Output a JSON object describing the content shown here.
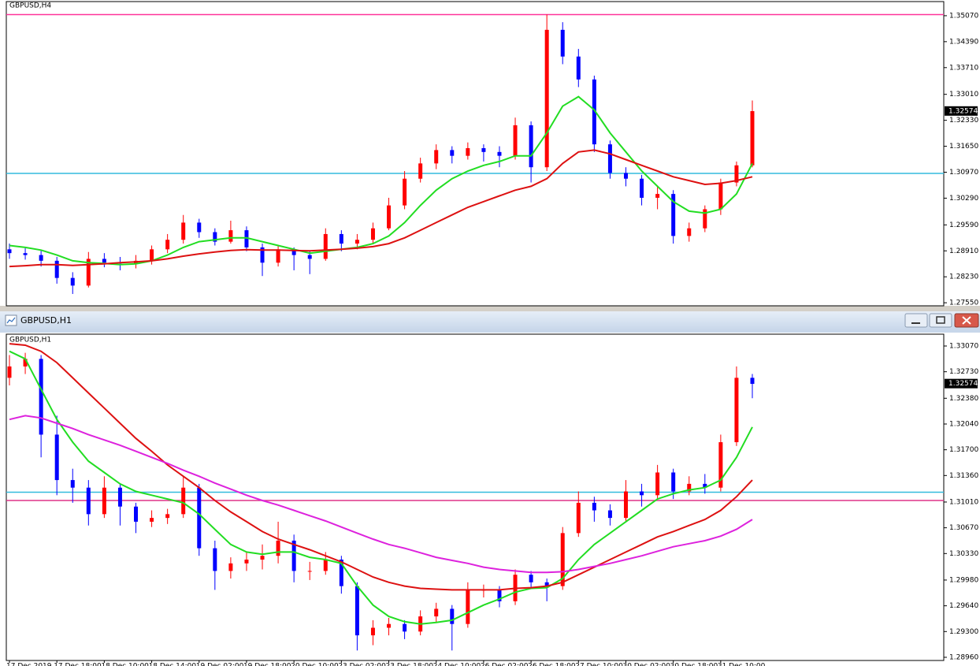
{
  "window": {
    "title": "GBPUSD,H1"
  },
  "chart_data": [
    {
      "type": "candlestick",
      "title": "GBPUSD,H4",
      "ylim": [
        1.2747,
        1.3544
      ],
      "yticks": [
        {
          "value": 1.3507,
          "label": "1.35070"
        },
        {
          "value": 1.3439,
          "label": "1.34390"
        },
        {
          "value": 1.3371,
          "label": "1.33710"
        },
        {
          "value": 1.3301,
          "label": "1.33010"
        },
        {
          "value": 1.3233,
          "label": "1.32330"
        },
        {
          "value": 1.3165,
          "label": "1.31650"
        },
        {
          "value": 1.3097,
          "label": "1.30970"
        },
        {
          "value": 1.3029,
          "label": "1.30290"
        },
        {
          "value": 1.2959,
          "label": "1.29590"
        },
        {
          "value": 1.2891,
          "label": "1.28910"
        },
        {
          "value": 1.2823,
          "label": "1.28230"
        },
        {
          "value": 1.2755,
          "label": "1.27550"
        }
      ],
      "current_price": 1.32574,
      "up_color": "#ff0000",
      "down_color": "#0000ff",
      "hlines": [
        {
          "value": 1.351,
          "color": "#ff3399"
        },
        {
          "value": 1.3094,
          "color": "#33bbdd"
        }
      ],
      "candles": [
        [
          1.2895,
          1.291,
          1.287,
          1.2885
        ],
        [
          1.2885,
          1.2898,
          1.2868,
          1.288
        ],
        [
          1.288,
          1.2892,
          1.285,
          1.2865
        ],
        [
          1.2865,
          1.2875,
          1.2805,
          1.282
        ],
        [
          1.282,
          1.2835,
          1.2778,
          1.28
        ],
        [
          1.28,
          1.2888,
          1.2795,
          1.287
        ],
        [
          1.287,
          1.2885,
          1.2848,
          1.286
        ],
        [
          1.286,
          1.2875,
          1.284,
          1.2858
        ],
        [
          1.2858,
          1.288,
          1.2845,
          1.2865
        ],
        [
          1.2865,
          1.2905,
          1.2855,
          1.2895
        ],
        [
          1.2895,
          1.2935,
          1.2885,
          1.292
        ],
        [
          1.292,
          1.2985,
          1.291,
          1.2965
        ],
        [
          1.2965,
          1.2975,
          1.2925,
          1.294
        ],
        [
          1.294,
          1.295,
          1.2905,
          1.2915
        ],
        [
          1.2915,
          1.297,
          1.291,
          1.2945
        ],
        [
          1.2945,
          1.2955,
          1.289,
          1.29
        ],
        [
          1.29,
          1.291,
          1.2825,
          1.286
        ],
        [
          1.286,
          1.2905,
          1.285,
          1.2895
        ],
        [
          1.2895,
          1.29,
          1.284,
          1.288
        ],
        [
          1.288,
          1.289,
          1.283,
          1.287
        ],
        [
          1.287,
          1.295,
          1.2865,
          1.2935
        ],
        [
          1.2935,
          1.2945,
          1.289,
          1.291
        ],
        [
          1.291,
          1.2935,
          1.2895,
          1.292
        ],
        [
          1.292,
          1.2965,
          1.291,
          1.295
        ],
        [
          1.295,
          1.303,
          1.2945,
          1.301
        ],
        [
          1.301,
          1.31,
          1.3,
          1.308
        ],
        [
          1.308,
          1.3135,
          1.307,
          1.312
        ],
        [
          1.312,
          1.317,
          1.3105,
          1.3155
        ],
        [
          1.3155,
          1.3165,
          1.312,
          1.314
        ],
        [
          1.314,
          1.3175,
          1.313,
          1.316
        ],
        [
          1.316,
          1.317,
          1.3125,
          1.315
        ],
        [
          1.315,
          1.3165,
          1.311,
          1.314
        ],
        [
          1.314,
          1.324,
          1.313,
          1.322
        ],
        [
          1.322,
          1.323,
          1.307,
          1.311
        ],
        [
          1.311,
          1.351,
          1.31,
          1.347
        ],
        [
          1.347,
          1.349,
          1.338,
          1.34
        ],
        [
          1.34,
          1.342,
          1.332,
          1.334
        ],
        [
          1.334,
          1.335,
          1.315,
          1.317
        ],
        [
          1.317,
          1.318,
          1.308,
          1.3095
        ],
        [
          1.3095,
          1.311,
          1.306,
          1.308
        ],
        [
          1.308,
          1.309,
          1.301,
          1.303
        ],
        [
          1.303,
          1.306,
          1.3,
          1.304
        ],
        [
          1.304,
          1.305,
          1.291,
          1.293
        ],
        [
          1.293,
          1.2965,
          1.2915,
          1.295
        ],
        [
          1.295,
          1.301,
          1.294,
          1.3
        ],
        [
          1.3,
          1.308,
          1.2985,
          1.307
        ],
        [
          1.307,
          1.3125,
          1.306,
          1.3115
        ],
        [
          1.3115,
          1.3285,
          1.311,
          1.3257
        ]
      ],
      "series": [
        {
          "color": "#22dd22",
          "values": [
            1.2905,
            1.29,
            1.2893,
            1.288,
            1.2865,
            1.286,
            1.2858,
            1.2855,
            1.2857,
            1.2865,
            1.288,
            1.29,
            1.2915,
            1.292,
            1.2925,
            1.2925,
            1.2915,
            1.2905,
            1.2895,
            1.2885,
            1.289,
            1.2895,
            1.29,
            1.291,
            1.293,
            1.2965,
            1.301,
            1.305,
            1.308,
            1.31,
            1.3115,
            1.3125,
            1.314,
            1.314,
            1.32,
            1.327,
            1.3295,
            1.326,
            1.32,
            1.315,
            1.31,
            1.306,
            1.302,
            1.2995,
            1.299,
            1.3,
            1.304,
            1.312
          ]
        },
        {
          "color": "#dd1111",
          "values": [
            1.285,
            1.2852,
            1.2855,
            1.2855,
            1.2853,
            1.2855,
            1.2857,
            1.286,
            1.2862,
            1.2865,
            1.287,
            1.2877,
            1.2883,
            1.2888,
            1.2892,
            1.2894,
            1.2893,
            1.2893,
            1.2892,
            1.2891,
            1.2893,
            1.2895,
            1.2898,
            1.2902,
            1.291,
            1.2925,
            1.2945,
            1.2965,
            1.2985,
            1.3005,
            1.302,
            1.3035,
            1.305,
            1.306,
            1.308,
            1.312,
            1.315,
            1.3155,
            1.3145,
            1.313,
            1.3115,
            1.31,
            1.3085,
            1.3075,
            1.3065,
            1.3068,
            1.3075,
            1.3085
          ]
        }
      ]
    },
    {
      "type": "candlestick",
      "title": "GBPUSD,H1",
      "ylim": [
        1.28918,
        1.33226
      ],
      "yticks": [
        {
          "value": 1.3307,
          "label": "1.33070"
        },
        {
          "value": 1.3273,
          "label": "1.32730"
        },
        {
          "value": 1.3238,
          "label": "1.32380"
        },
        {
          "value": 1.3204,
          "label": "1.32040"
        },
        {
          "value": 1.317,
          "label": "1.31700"
        },
        {
          "value": 1.3136,
          "label": "1.31360"
        },
        {
          "value": 1.3101,
          "label": "1.31010"
        },
        {
          "value": 1.3067,
          "label": "1.30670"
        },
        {
          "value": 1.3033,
          "label": "1.30330"
        },
        {
          "value": 1.2998,
          "label": "1.29980"
        },
        {
          "value": 1.2964,
          "label": "1.29640"
        },
        {
          "value": 1.293,
          "label": "1.29300"
        },
        {
          "value": 1.2896,
          "label": "1.28960"
        }
      ],
      "current_price": 1.32574,
      "up_color": "#ff0000",
      "down_color": "#0000ff",
      "hlines": [
        {
          "value": 1.3114,
          "color": "#33bbdd"
        },
        {
          "value": 1.3103,
          "color": "#dd3388"
        }
      ],
      "categories": [
        "17 Dec 2019",
        null,
        null,
        "17 Dec 18:00",
        null,
        null,
        "18 Dec 10:00",
        null,
        null,
        "18 Dec 14:00",
        null,
        null,
        "19 Dec 02:00",
        null,
        null,
        "19 Dec 18:00",
        null,
        null,
        "20 Dec 10:00",
        null,
        null,
        "23 Dec 02:00",
        null,
        null,
        "23 Dec 18:00",
        null,
        null,
        "24 Dec 10:00",
        null,
        null,
        "26 Dec 02:00",
        null,
        null,
        "26 Dec 18:00",
        null,
        null,
        "27 Dec 10:00",
        null,
        null,
        "30 Dec 02:00",
        null,
        null,
        "30 Dec 18:00",
        null,
        null,
        "31 Dec 10:00",
        null,
        null
      ],
      "candles": [
        [
          1.3265,
          1.3295,
          1.3255,
          1.328
        ],
        [
          1.328,
          1.3298,
          1.327,
          1.329
        ],
        [
          1.329,
          1.3295,
          1.316,
          1.319
        ],
        [
          1.319,
          1.3215,
          1.311,
          1.313
        ],
        [
          1.313,
          1.3145,
          1.31,
          1.312
        ],
        [
          1.312,
          1.313,
          1.307,
          1.3085
        ],
        [
          1.3085,
          1.3135,
          1.308,
          1.312
        ],
        [
          1.312,
          1.3125,
          1.307,
          1.3095
        ],
        [
          1.3095,
          1.31,
          1.306,
          1.3075
        ],
        [
          1.3075,
          1.309,
          1.3068,
          1.308
        ],
        [
          1.308,
          1.3092,
          1.3072,
          1.3085
        ],
        [
          1.3085,
          1.3135,
          1.308,
          1.312
        ],
        [
          1.312,
          1.3125,
          1.303,
          1.304
        ],
        [
          1.304,
          1.305,
          1.2985,
          1.301
        ],
        [
          1.301,
          1.3028,
          1.3,
          1.302
        ],
        [
          1.302,
          1.3035,
          1.301,
          1.3025
        ],
        [
          1.3025,
          1.3045,
          1.3012,
          1.303
        ],
        [
          1.303,
          1.3075,
          1.302,
          1.305
        ],
        [
          1.305,
          1.3058,
          1.2995,
          1.301
        ],
        [
          1.301,
          1.3022,
          1.2998,
          1.301
        ],
        [
          1.301,
          1.3035,
          1.3005,
          1.3025
        ],
        [
          1.3025,
          1.303,
          1.298,
          1.299
        ],
        [
          1.299,
          1.2995,
          1.2905,
          1.2925
        ],
        [
          1.2925,
          1.2945,
          1.2912,
          1.2935
        ],
        [
          1.2935,
          1.2948,
          1.2925,
          1.294
        ],
        [
          1.294,
          1.2945,
          1.292,
          1.293
        ],
        [
          1.293,
          1.2958,
          1.2925,
          1.295
        ],
        [
          1.295,
          1.2968,
          1.2942,
          1.296
        ],
        [
          1.296,
          1.2965,
          1.2905,
          1.294
        ],
        [
          1.294,
          1.2995,
          1.2935,
          1.2985
        ],
        [
          1.2985,
          1.2992,
          1.2975,
          1.2985
        ],
        [
          1.2985,
          1.299,
          1.2962,
          1.297
        ],
        [
          1.297,
          1.3012,
          1.2965,
          1.3005
        ],
        [
          1.3005,
          1.301,
          1.2988,
          1.2995
        ],
        [
          1.2995,
          1.3,
          1.297,
          1.299
        ],
        [
          1.299,
          1.3068,
          1.2985,
          1.306
        ],
        [
          1.306,
          1.3115,
          1.3055,
          1.31
        ],
        [
          1.31,
          1.3108,
          1.3075,
          1.309
        ],
        [
          1.309,
          1.3098,
          1.307,
          1.308
        ],
        [
          1.308,
          1.313,
          1.3075,
          1.3115
        ],
        [
          1.3115,
          1.3125,
          1.3095,
          1.311
        ],
        [
          1.311,
          1.315,
          1.3105,
          1.314
        ],
        [
          1.314,
          1.3145,
          1.3105,
          1.3115
        ],
        [
          1.3115,
          1.3135,
          1.311,
          1.3125
        ],
        [
          1.3125,
          1.3138,
          1.3112,
          1.312
        ],
        [
          1.312,
          1.319,
          1.3115,
          1.318
        ],
        [
          1.318,
          1.328,
          1.3175,
          1.3265
        ],
        [
          1.3265,
          1.327,
          1.3238,
          1.3257
        ]
      ],
      "series": [
        {
          "color": "#22dd22",
          "values": [
            1.33,
            1.329,
            1.325,
            1.321,
            1.318,
            1.3155,
            1.314,
            1.3125,
            1.3115,
            1.311,
            1.3105,
            1.31,
            1.3085,
            1.3065,
            1.3045,
            1.3035,
            1.3032,
            1.3035,
            1.3035,
            1.3028,
            1.3025,
            1.302,
            1.299,
            1.2965,
            1.295,
            1.2943,
            1.294,
            1.2942,
            1.2945,
            1.2955,
            1.2965,
            1.2973,
            1.2982,
            1.2987,
            1.2988,
            1.3,
            1.3025,
            1.3045,
            1.306,
            1.3075,
            1.309,
            1.3105,
            1.3112,
            1.3117,
            1.312,
            1.313,
            1.316,
            1.32
          ]
        },
        {
          "color": "#dd1111",
          "values": [
            1.331,
            1.3308,
            1.33,
            1.3285,
            1.3265,
            1.3245,
            1.3225,
            1.3205,
            1.3185,
            1.3168,
            1.315,
            1.3135,
            1.312,
            1.3103,
            1.3088,
            1.3075,
            1.3062,
            1.3052,
            1.3045,
            1.3038,
            1.303,
            1.3022,
            1.3012,
            1.3002,
            1.2995,
            1.299,
            1.2987,
            1.2986,
            1.2985,
            1.2985,
            1.2985,
            1.2985,
            1.2987,
            1.2988,
            1.299,
            1.2995,
            1.3005,
            1.3015,
            1.3025,
            1.3035,
            1.3045,
            1.3055,
            1.3062,
            1.307,
            1.3078,
            1.309,
            1.3108,
            1.313
          ]
        },
        {
          "color": "#dd22dd",
          "values": [
            1.321,
            1.3215,
            1.3212,
            1.3205,
            1.3198,
            1.319,
            1.3183,
            1.3176,
            1.3168,
            1.316,
            1.3152,
            1.3143,
            1.3135,
            1.3126,
            1.3118,
            1.311,
            1.3103,
            1.3097,
            1.309,
            1.3083,
            1.3076,
            1.3068,
            1.306,
            1.3052,
            1.3045,
            1.304,
            1.3034,
            1.3028,
            1.3024,
            1.302,
            1.3015,
            1.3012,
            1.301,
            1.3008,
            1.3008,
            1.3009,
            1.3012,
            1.3016,
            1.302,
            1.3025,
            1.303,
            1.3036,
            1.3042,
            1.3046,
            1.305,
            1.3056,
            1.3065,
            1.3078
          ]
        }
      ]
    }
  ]
}
